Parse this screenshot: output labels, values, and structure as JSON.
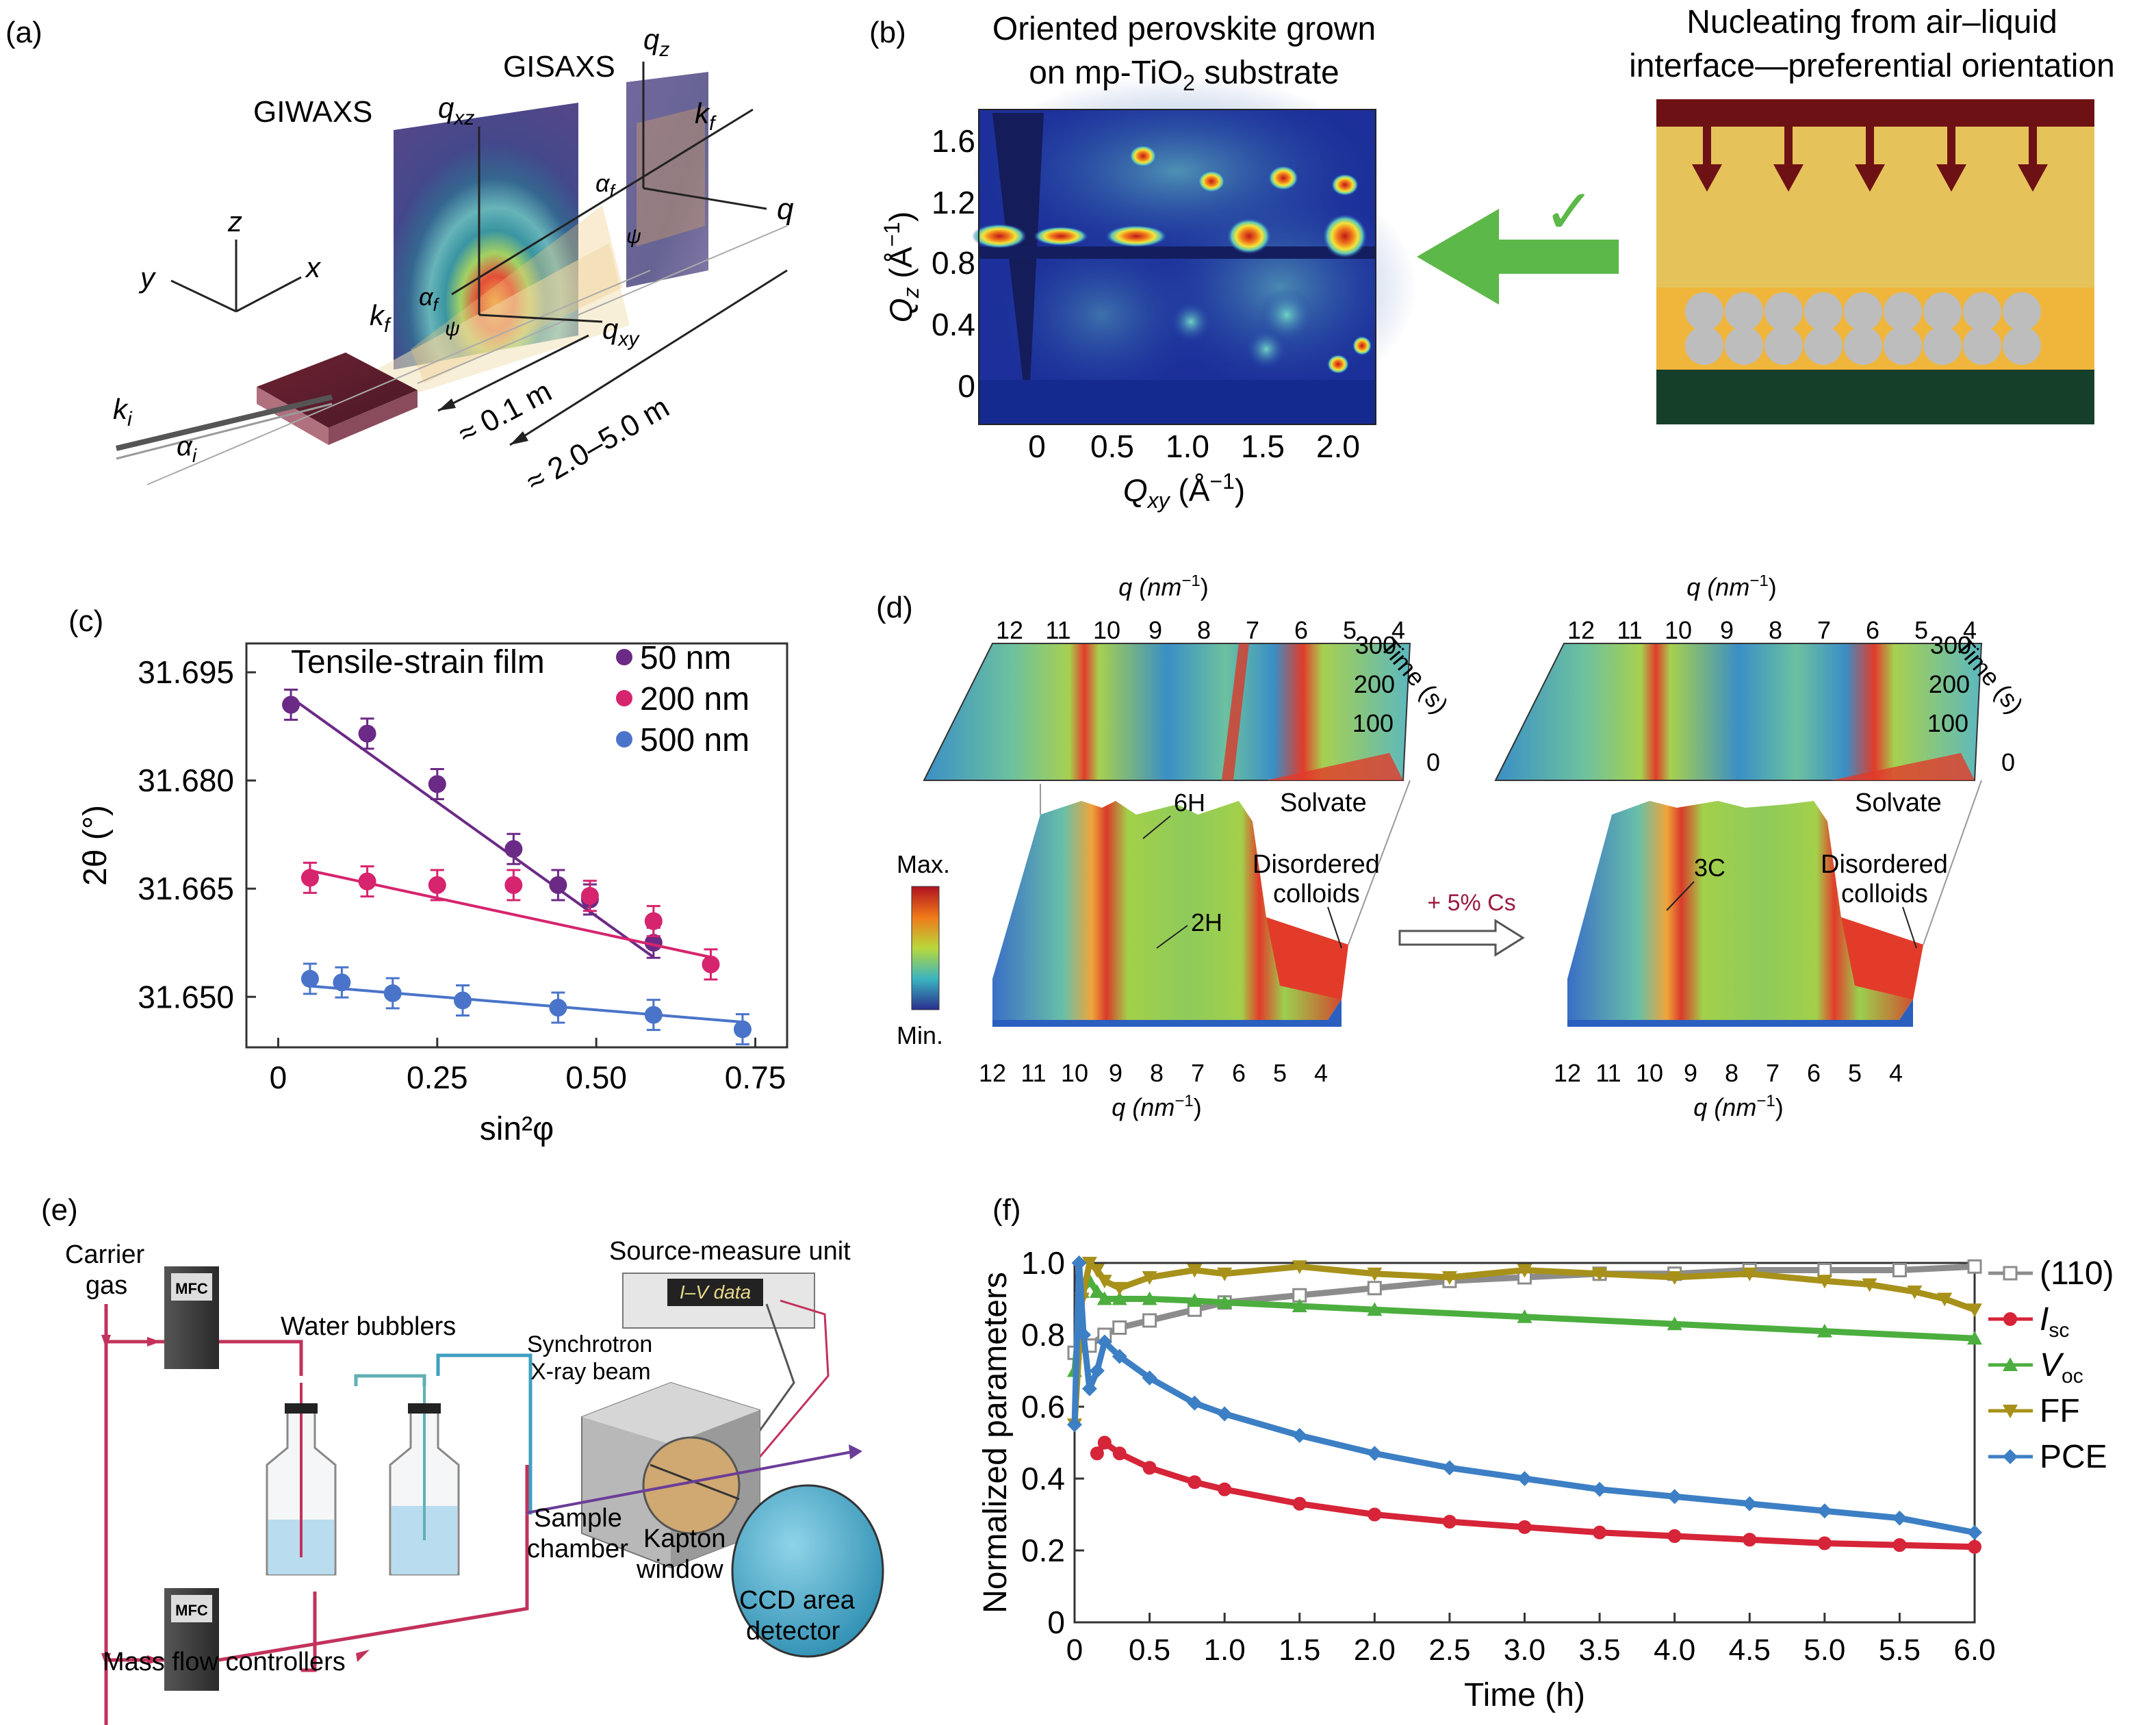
{
  "panels": {
    "a": {
      "label": "(a)",
      "giwaxs": "GIWAXS",
      "gisaxs": "GISAXS",
      "axis_x": "x",
      "axis_y": "y",
      "axis_z": "z",
      "qz": "q",
      "qz_sub": "z",
      "qxz": "q",
      "qxz_sub": "xz",
      "qxy": "q",
      "qxy_sub": "xy",
      "q": "q",
      "kf": "k",
      "kf_sub": "f",
      "ki": "k",
      "ki_sub": "i",
      "alpha_i": "α",
      "alpha_i_sub": "i",
      "alpha_f": "α",
      "alpha_f_sub": "f",
      "psi": "ψ",
      "dist1": "≈ 0.1 m",
      "dist2": "≈ 2.0–5.0 m"
    },
    "b": {
      "label": "(b)",
      "title_line1": "Oriented perovskite grown",
      "title_line2a": "on mp-TiO",
      "title_line2_sub": "2",
      "title_line2b": " substrate",
      "right_title1": "Nucleating from air–liquid",
      "right_title2": "interface—preferential orientation",
      "ylabel": "Q",
      "ylabel_sub": "z",
      "ylabel_unit": " (Å",
      "ylabel_sup": "−1",
      "ylabel_end": ")",
      "xlabel": "Q",
      "xlabel_sub": "xy",
      "xlabel_unit": " (Å",
      "xlabel_sup": "−1",
      "xlabel_end": ")",
      "yticks": [
        "1.6",
        "1.2",
        "0.8",
        "0.4",
        "0"
      ],
      "xticks": [
        "0",
        "0.5",
        "1.0",
        "1.5",
        "2.0"
      ],
      "check": "✓"
    },
    "d": {
      "label": "(d)",
      "qlabel": "q (nm",
      "qlabel_sup": "−1",
      "qlabel_end": ")",
      "time_label": "Time (s)",
      "qticks": [
        "12",
        "11",
        "10",
        "9",
        "8",
        "7",
        "6",
        "5",
        "4"
      ],
      "tticks": [
        "300",
        "200",
        "100",
        "0"
      ],
      "left_6h": "6H",
      "left_2h": "2H",
      "right_3c": "3C",
      "solvate": "Solvate",
      "disordered1": "Disordered",
      "disordered2": "colloids",
      "cs_label": "+ 5% Cs",
      "cbar_max": "Max.",
      "cbar_min": "Min."
    },
    "e": {
      "label": "(e)",
      "carrier1": "Carrier",
      "carrier2": "gas",
      "mfc": "MFC",
      "water": "Water bubblers",
      "smu": "Source-measure unit",
      "iv": "I–V data",
      "sync1": "Synchrotron",
      "sync2": "X-ray beam",
      "sample1": "Sample",
      "sample2": "chamber",
      "kapton1": "Kapton",
      "kapton2": "window",
      "ccd1": "CCD area",
      "ccd2": "detector",
      "mass": "Mass flow controllers"
    }
  },
  "colors": {
    "purple": "#6b2a86",
    "pink": "#d6246e",
    "blue": "#4a74c9",
    "red": "#d62438",
    "green": "#4cae3e",
    "olive": "#a7911a",
    "gray": "#8c8c8c",
    "pce": "#3d7fc4"
  },
  "chart_data": [
    {
      "id": "c",
      "label": "(c)",
      "type": "scatter",
      "title": "Tensile-strain film",
      "xlabel": "sin²φ",
      "ylabel": "2θ (°)",
      "xlim": [
        -0.05,
        0.8
      ],
      "ylim": [
        31.643,
        31.699
      ],
      "xticks": [
        "0",
        "0.25",
        "0.50",
        "0.75"
      ],
      "xtick_values": [
        0,
        0.25,
        0.5,
        0.75
      ],
      "yticks": [
        "31.695",
        "31.680",
        "31.665",
        "31.650"
      ],
      "ytick_values": [
        31.695,
        31.68,
        31.665,
        31.65
      ],
      "legend": "top-right",
      "series": [
        {
          "name": "50 nm",
          "color": "#6b2a86",
          "x": [
            0.02,
            0.14,
            0.25,
            0.37,
            0.44,
            0.49,
            0.59
          ],
          "y": [
            31.6905,
            31.6865,
            31.6795,
            31.6705,
            31.6655,
            31.6635,
            31.6575
          ],
          "fit": [
            [
              0.02,
              31.6915
            ],
            [
              0.59,
              31.6555
            ]
          ]
        },
        {
          "name": "200 nm",
          "color": "#d6246e",
          "x": [
            0.05,
            0.14,
            0.25,
            0.37,
            0.49,
            0.59,
            0.68
          ],
          "y": [
            31.6665,
            31.666,
            31.6655,
            31.6655,
            31.664,
            31.6605,
            31.6545
          ],
          "fit": [
            [
              0.05,
              31.6675
            ],
            [
              0.68,
              31.6555
            ]
          ]
        },
        {
          "name": "500 nm",
          "color": "#4a74c9",
          "x": [
            0.05,
            0.1,
            0.18,
            0.29,
            0.44,
            0.59,
            0.73
          ],
          "y": [
            31.6525,
            31.652,
            31.6505,
            31.6495,
            31.6485,
            31.6475,
            31.6455
          ],
          "fit": [
            [
              0.05,
              31.6515
            ],
            [
              0.73,
              31.6465
            ]
          ]
        }
      ]
    },
    {
      "id": "f",
      "label": "(f)",
      "type": "line",
      "xlabel": "Time (h)",
      "ylabel": "Normalized parameters",
      "xlim": [
        0,
        6
      ],
      "ylim": [
        0,
        1
      ],
      "xticks": [
        "0",
        "0.5",
        "1.0",
        "1.5",
        "2.0",
        "2.5",
        "3.0",
        "3.5",
        "4.0",
        "4.5",
        "5.0",
        "5.5",
        "6.0"
      ],
      "xtick_values": [
        0,
        0.5,
        1,
        1.5,
        2,
        2.5,
        3,
        3.5,
        4,
        4.5,
        5,
        5.5,
        6
      ],
      "yticks": [
        "0",
        "0.2",
        "0.4",
        "0.6",
        "0.8",
        "1.0"
      ],
      "ytick_values": [
        0,
        0.2,
        0.4,
        0.6,
        0.8,
        1.0
      ],
      "legend": "right",
      "series": [
        {
          "name": "(110)",
          "sub": "",
          "marker": "square",
          "color": "#8c8c8c",
          "x": [
            0,
            0.1,
            0.2,
            0.3,
            0.5,
            0.8,
            1.0,
            1.5,
            2.0,
            2.5,
            3.0,
            3.5,
            4.0,
            4.5,
            5.0,
            5.5,
            6.0
          ],
          "y": [
            0.75,
            0.77,
            0.8,
            0.82,
            0.84,
            0.87,
            0.89,
            0.91,
            0.93,
            0.95,
            0.96,
            0.97,
            0.97,
            0.98,
            0.98,
            0.98,
            0.99
          ]
        },
        {
          "name": "I",
          "sub": "sc",
          "marker": "circle",
          "color": "#d62438",
          "x": [
            0.15,
            0.2,
            0.3,
            0.5,
            0.8,
            1.0,
            1.5,
            2.0,
            2.5,
            3.0,
            3.5,
            4.0,
            4.5,
            5.0,
            5.5,
            6.0
          ],
          "y": [
            0.47,
            0.5,
            0.47,
            0.43,
            0.39,
            0.37,
            0.33,
            0.3,
            0.28,
            0.265,
            0.25,
            0.24,
            0.23,
            0.22,
            0.215,
            0.21
          ]
        },
        {
          "name": "V",
          "sub": "oc",
          "marker": "triangle",
          "color": "#4cae3e",
          "x": [
            0,
            0.05,
            0.1,
            0.15,
            0.2,
            0.3,
            0.5,
            0.8,
            1.0,
            1.5,
            2.0,
            3.0,
            4.0,
            5.0,
            6.0
          ],
          "y": [
            0.7,
            0.92,
            0.95,
            0.92,
            0.9,
            0.9,
            0.9,
            0.895,
            0.89,
            0.88,
            0.87,
            0.85,
            0.83,
            0.81,
            0.79
          ]
        },
        {
          "name": "FF",
          "sub": "",
          "marker": "triangle-down",
          "color": "#a7911a",
          "x": [
            0,
            0.05,
            0.1,
            0.15,
            0.2,
            0.3,
            0.5,
            0.8,
            1.0,
            1.5,
            2.0,
            2.5,
            3.0,
            3.5,
            4.0,
            4.5,
            5.0,
            5.3,
            5.6,
            5.8,
            6.0
          ],
          "y": [
            0.55,
            0.9,
            1.0,
            0.98,
            0.95,
            0.93,
            0.96,
            0.98,
            0.97,
            0.99,
            0.97,
            0.96,
            0.98,
            0.97,
            0.96,
            0.97,
            0.95,
            0.94,
            0.92,
            0.9,
            0.87
          ]
        },
        {
          "name": "PCE",
          "sub": "",
          "marker": "diamond",
          "color": "#3d7fc4",
          "x": [
            0,
            0.03,
            0.06,
            0.1,
            0.15,
            0.2,
            0.3,
            0.5,
            0.8,
            1.0,
            1.5,
            2.0,
            2.5,
            3.0,
            3.5,
            4.0,
            4.5,
            5.0,
            5.5,
            6.0
          ],
          "y": [
            0.55,
            1.0,
            0.8,
            0.65,
            0.7,
            0.78,
            0.74,
            0.68,
            0.61,
            0.58,
            0.52,
            0.47,
            0.43,
            0.4,
            0.37,
            0.35,
            0.33,
            0.31,
            0.29,
            0.25
          ]
        }
      ]
    }
  ]
}
